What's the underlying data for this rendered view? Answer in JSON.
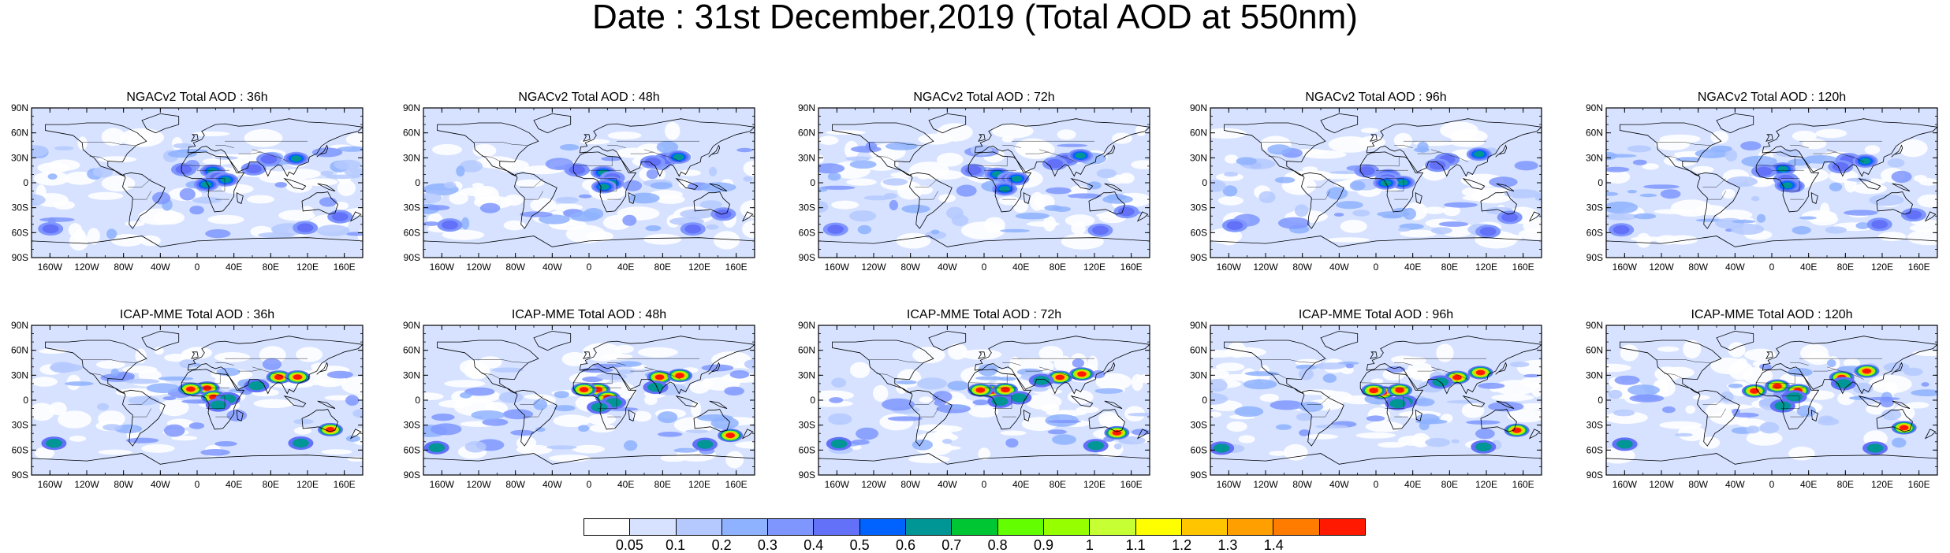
{
  "title": "Date : 31st December,2019 (Total AOD at 550nm)",
  "lat_ticks": [
    "90N",
    "60N",
    "30N",
    "0",
    "30S",
    "60S",
    "90S"
  ],
  "lon_ticks": [
    "160W",
    "120W",
    "80W",
    "40W",
    "0",
    "40E",
    "80E",
    "120E",
    "160E"
  ],
  "panels": [
    {
      "title": "NGACv2 Total AOD : 36h",
      "model": "NGACv2"
    },
    {
      "title": "NGACv2 Total AOD : 48h",
      "model": "NGACv2"
    },
    {
      "title": "NGACv2 Total AOD : 72h",
      "model": "NGACv2"
    },
    {
      "title": "NGACv2 Total AOD : 96h",
      "model": "NGACv2"
    },
    {
      "title": "NGACv2 Total AOD : 120h",
      "model": "NGACv2"
    },
    {
      "title": "ICAP-MME Total AOD : 36h",
      "model": "ICAP-MME"
    },
    {
      "title": "ICAP-MME Total AOD : 48h",
      "model": "ICAP-MME"
    },
    {
      "title": "ICAP-MME Total AOD : 72h",
      "model": "ICAP-MME"
    },
    {
      "title": "ICAP-MME Total AOD : 96h",
      "model": "ICAP-MME"
    },
    {
      "title": "ICAP-MME Total AOD : 120h",
      "model": "ICAP-MME"
    }
  ],
  "legend": {
    "labels": [
      "0.05",
      "0.1",
      "0.2",
      "0.3",
      "0.4",
      "0.5",
      "0.6",
      "0.7",
      "0.8",
      "0.9",
      "1",
      "1.1",
      "1.2",
      "1.3",
      "1.4"
    ],
    "colors": [
      "#ffffff",
      "#d6e2ff",
      "#b5c9ff",
      "#8eb2ff",
      "#7f96ff",
      "#6370f8",
      "#0063ff",
      "#009696",
      "#00c633",
      "#63ff00",
      "#96ff00",
      "#c6ff33",
      "#ffff00",
      "#ffc600",
      "#ffa000",
      "#ff7c00",
      "#ff1900"
    ]
  },
  "colors": {
    "land_line": "#000000",
    "background_aod": "#d6e2ff",
    "low_aod": "#ffffff"
  }
}
